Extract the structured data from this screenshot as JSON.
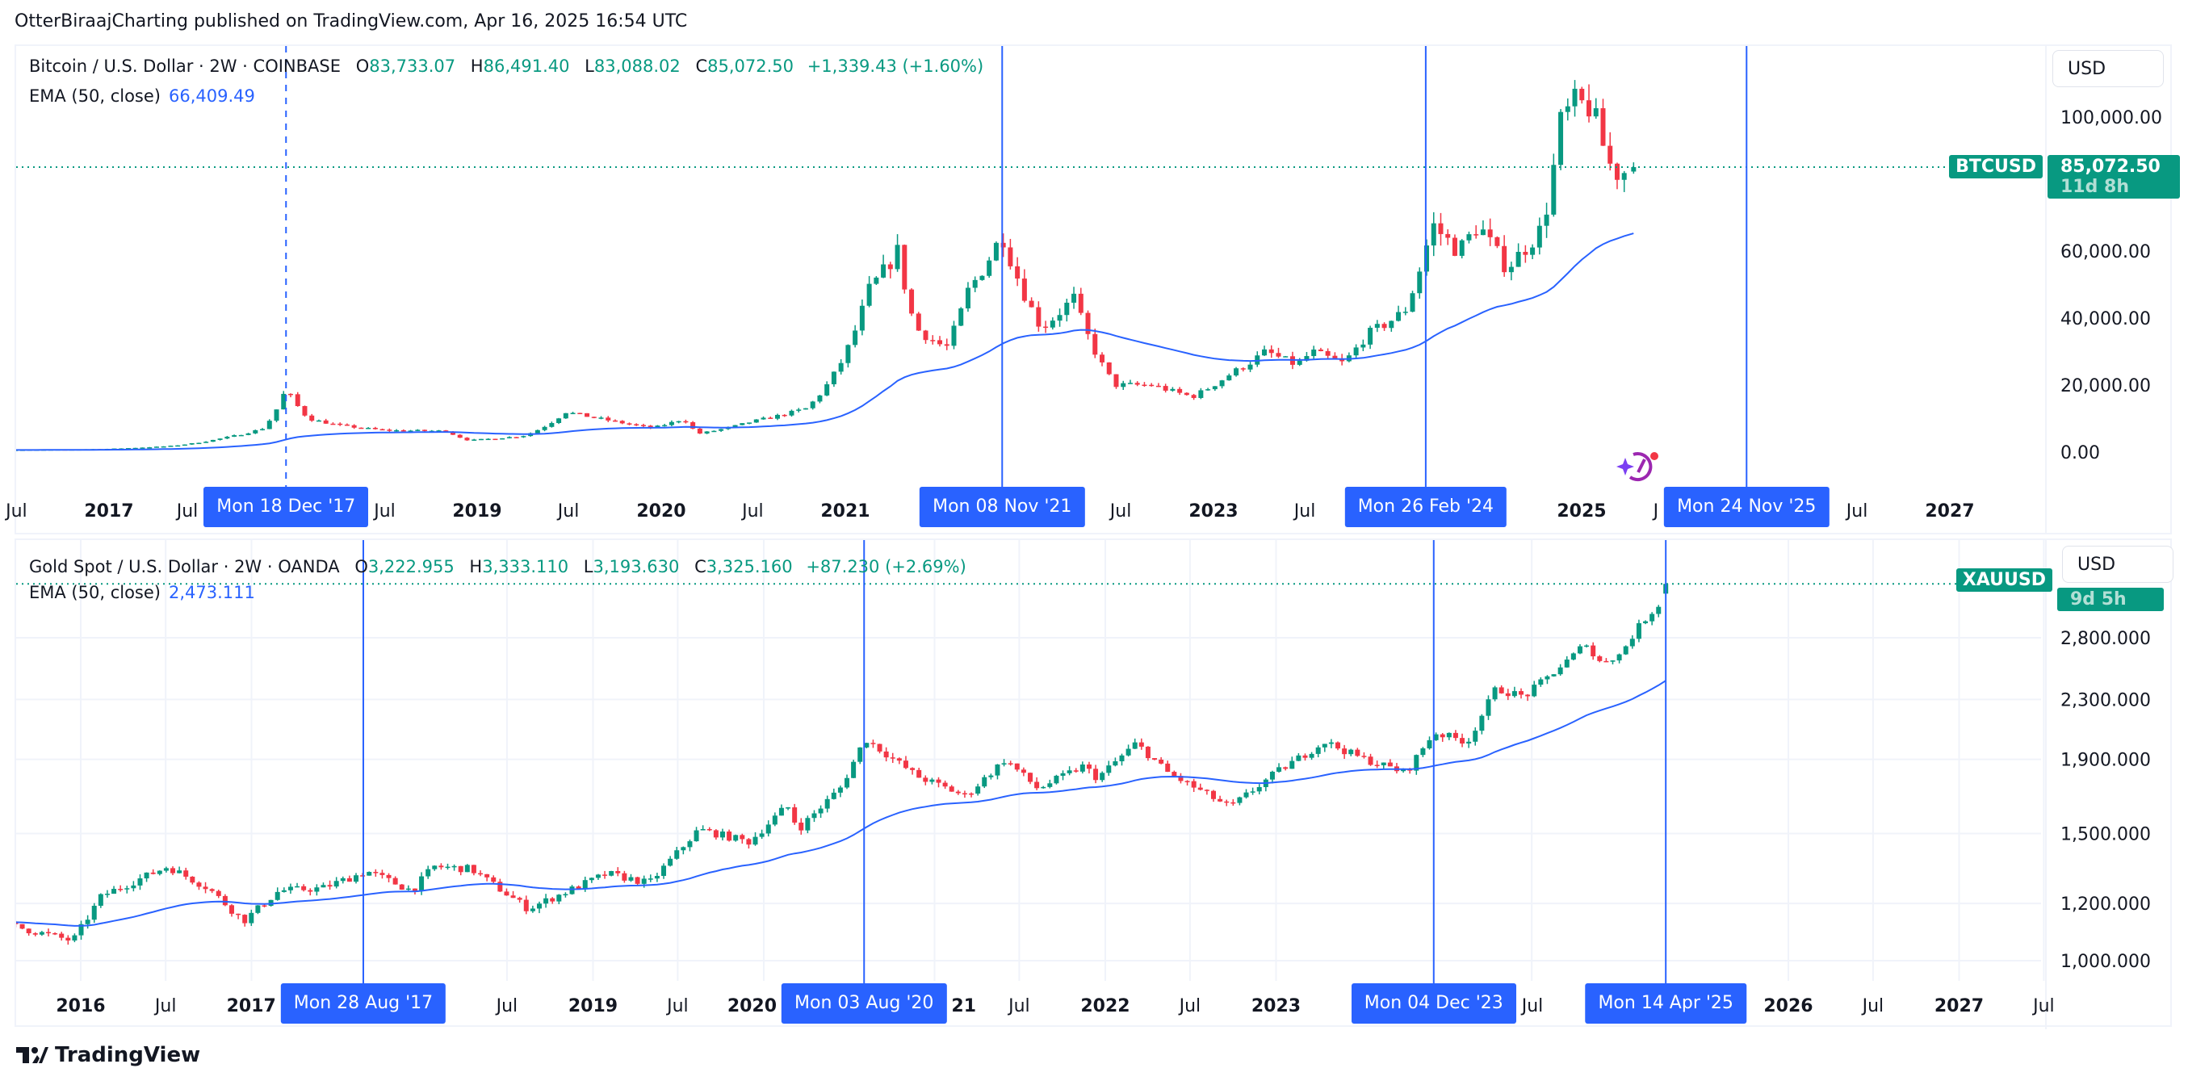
{
  "publisher": "OtterBiraajCharting published on TradingView.com, Apr 16, 2025 16:54 UTC",
  "branding": "TradingView",
  "colors": {
    "up": "#089981",
    "down": "#f23645",
    "ema": "#2962ff",
    "marker": "#2962ff",
    "grid": "#f0f3fa"
  },
  "chart_data": [
    {
      "type": "candlestick",
      "title": "Bitcoin / U.S. Dollar · 2W · COINBASE",
      "ohlc": {
        "o_label": "O",
        "o": "83,733.07",
        "h_label": "H",
        "h": "86,491.40",
        "l_label": "L",
        "l": "83,088.02",
        "c_label": "C",
        "c": "85,072.50",
        "change": "+1,339.43 (+1.60%)"
      },
      "last_ohlc": [
        83733.07,
        86491.4,
        83088.02,
        85072.5
      ],
      "ema_label": "EMA (50, close)",
      "ema_value": "66,409.49",
      "currency": "USD",
      "symbol_tag": "BTCUSD",
      "last_price": "85,072.50",
      "countdown": "11d 8h",
      "scale": "linear",
      "ylim": [
        -10000,
        125000
      ],
      "y_ticks": [
        {
          "v": 100000,
          "t": "100,000.00"
        },
        {
          "v": 60000,
          "t": "60,000.00"
        },
        {
          "v": 40000,
          "t": "40,000.00"
        },
        {
          "v": 20000,
          "t": "20,000.00"
        },
        {
          "v": 0,
          "t": "0.00"
        }
      ],
      "close_path": [
        [
          "2016-06-01",
          650
        ],
        [
          "2016-12-15",
          900
        ],
        [
          "2017-05-01",
          1800
        ],
        [
          "2017-08-15",
          4200
        ],
        [
          "2017-11-01",
          7000
        ],
        [
          "2017-12-18",
          19000
        ],
        [
          "2018-02-01",
          10000
        ],
        [
          "2018-04-01",
          8000
        ],
        [
          "2018-07-01",
          6500
        ],
        [
          "2018-11-01",
          6300
        ],
        [
          "2018-12-15",
          3500
        ],
        [
          "2019-04-01",
          4800
        ],
        [
          "2019-06-25",
          12000
        ],
        [
          "2019-09-01",
          10000
        ],
        [
          "2019-12-15",
          7200
        ],
        [
          "2020-02-15",
          10000
        ],
        [
          "2020-03-15",
          5500
        ],
        [
          "2020-07-01",
          9200
        ],
        [
          "2020-10-15",
          13000
        ],
        [
          "2020-12-31",
          29000
        ],
        [
          "2021-02-15",
          48000
        ],
        [
          "2021-04-15",
          60000
        ],
        [
          "2021-05-20",
          37000
        ],
        [
          "2021-07-20",
          31000
        ],
        [
          "2021-09-01",
          48000
        ],
        [
          "2021-11-08",
          65000
        ],
        [
          "2022-01-25",
          37000
        ],
        [
          "2022-03-30",
          46000
        ],
        [
          "2022-06-20",
          20000
        ],
        [
          "2022-09-01",
          20000
        ],
        [
          "2022-11-20",
          16500
        ],
        [
          "2023-01-31",
          23000
        ],
        [
          "2023-04-15",
          30000
        ],
        [
          "2023-06-15",
          26000
        ],
        [
          "2023-07-15",
          30000
        ],
        [
          "2023-09-15",
          26500
        ],
        [
          "2023-11-01",
          35000
        ],
        [
          "2024-01-15",
          42000
        ],
        [
          "2024-03-10",
          68000
        ],
        [
          "2024-05-01",
          60000
        ],
        [
          "2024-06-10",
          68000
        ],
        [
          "2024-08-05",
          55000
        ],
        [
          "2024-10-15",
          67000
        ],
        [
          "2024-11-20",
          98000
        ],
        [
          "2024-12-15",
          104000
        ],
        [
          "2025-01-20",
          103000
        ],
        [
          "2025-02-25",
          86000
        ],
        [
          "2025-03-15",
          83000
        ],
        [
          "2025-04-14",
          85072.5
        ]
      ],
      "x_ticks": [
        {
          "d": "2016-07-01",
          "t": "Jul"
        },
        {
          "d": "2017-01-01",
          "t": "2017",
          "major": true
        },
        {
          "d": "2017-07-01",
          "t": "Jul"
        },
        {
          "d": "2018-07-01",
          "t": "Jul"
        },
        {
          "d": "2019-01-01",
          "t": "2019",
          "major": true
        },
        {
          "d": "2019-07-01",
          "t": "Jul"
        },
        {
          "d": "2020-01-01",
          "t": "2020",
          "major": true
        },
        {
          "d": "2020-07-01",
          "t": "Jul"
        },
        {
          "d": "2021-01-01",
          "t": "2021",
          "major": true
        },
        {
          "d": "2022-07-01",
          "t": "Jul"
        },
        {
          "d": "2023-01-01",
          "t": "2023",
          "major": true
        },
        {
          "d": "2023-07-01",
          "t": "Jul"
        },
        {
          "d": "2025-01-01",
          "t": "2025",
          "major": true
        },
        {
          "d": "2025-07-01",
          "t": "J"
        },
        {
          "d": "2026-07-01",
          "t": "Jul"
        },
        {
          "d": "2027-01-01",
          "t": "2027",
          "major": true
        }
      ],
      "markers": [
        {
          "d": "2017-12-18",
          "t": "Mon 18 Dec '17",
          "style": "dashed"
        },
        {
          "d": "2021-11-08",
          "t": "Mon 08 Nov '21",
          "style": "solid"
        },
        {
          "d": "2024-02-26",
          "t": "Mon 26 Feb '24",
          "style": "solid"
        },
        {
          "d": "2025-11-24",
          "t": "Mon 24 Nov '25",
          "style": "solid"
        }
      ]
    },
    {
      "type": "candlestick",
      "title": "Gold Spot / U.S. Dollar · 2W · OANDA",
      "ohlc": {
        "o_label": "O",
        "o": "3,222.955",
        "h_label": "H",
        "h": "3,333.110",
        "l_label": "L",
        "l": "3,193.630",
        "c_label": "C",
        "c": "3,325.160",
        "change": "+87.230 (+2.69%)"
      },
      "last_ohlc": [
        3222.955,
        3333.11,
        3193.63,
        3325.16
      ],
      "ema_label": "EMA (50, close)",
      "ema_value": "2,473.111",
      "currency": "USD",
      "symbol_tag": "XAUUSD",
      "countdown": "9d 5h",
      "scale": "log",
      "y_ticks": [
        {
          "v": 2800,
          "t": "2,800.000"
        },
        {
          "v": 2300,
          "t": "2,300.000"
        },
        {
          "v": 1900,
          "t": "1,900.000"
        },
        {
          "v": 1500,
          "t": "1,500.000"
        },
        {
          "v": 1200,
          "t": "1,200.000"
        },
        {
          "v": 1000,
          "t": "1,000.000"
        }
      ],
      "close_path": [
        [
          "2015-08-01",
          1120
        ],
        [
          "2015-12-15",
          1065
        ],
        [
          "2016-02-15",
          1230
        ],
        [
          "2016-07-05",
          1350
        ],
        [
          "2016-10-01",
          1260
        ],
        [
          "2016-12-15",
          1135
        ],
        [
          "2017-03-01",
          1250
        ],
        [
          "2017-06-01",
          1260
        ],
        [
          "2017-09-05",
          1330
        ],
        [
          "2017-12-10",
          1250
        ],
        [
          "2018-01-25",
          1350
        ],
        [
          "2018-04-15",
          1340
        ],
        [
          "2018-08-15",
          1180
        ],
        [
          "2019-01-31",
          1320
        ],
        [
          "2019-05-01",
          1280
        ],
        [
          "2019-08-15",
          1520
        ],
        [
          "2019-12-01",
          1460
        ],
        [
          "2020-02-20",
          1640
        ],
        [
          "2020-03-15",
          1520
        ],
        [
          "2020-06-15",
          1740
        ],
        [
          "2020-08-05",
          2030
        ],
        [
          "2020-11-25",
          1800
        ],
        [
          "2021-03-08",
          1690
        ],
        [
          "2021-06-01",
          1900
        ],
        [
          "2021-08-10",
          1730
        ],
        [
          "2021-11-15",
          1860
        ],
        [
          "2021-12-15",
          1790
        ],
        [
          "2022-03-08",
          2000
        ],
        [
          "2022-05-15",
          1820
        ],
        [
          "2022-09-25",
          1630
        ],
        [
          "2022-12-31",
          1820
        ],
        [
          "2023-04-15",
          2010
        ],
        [
          "2023-06-30",
          1910
        ],
        [
          "2023-10-05",
          1820
        ],
        [
          "2023-12-04",
          2070
        ],
        [
          "2024-02-15",
          2010
        ],
        [
          "2024-04-15",
          2380
        ],
        [
          "2024-06-15",
          2320
        ],
        [
          "2024-09-30",
          2650
        ],
        [
          "2024-10-30",
          2780
        ],
        [
          "2024-11-15",
          2580
        ],
        [
          "2025-01-05",
          2650
        ],
        [
          "2025-02-20",
          2930
        ],
        [
          "2025-03-31",
          3120
        ],
        [
          "2025-04-14",
          3325.16
        ]
      ],
      "x_ticks": [
        {
          "d": "2016-01-01",
          "t": "2016",
          "major": true
        },
        {
          "d": "2016-07-01",
          "t": "Jul"
        },
        {
          "d": "2017-01-01",
          "t": "2017",
          "major": true
        },
        {
          "d": "2018-07-01",
          "t": "Jul"
        },
        {
          "d": "2019-01-01",
          "t": "2019",
          "major": true
        },
        {
          "d": "2019-07-01",
          "t": "Jul"
        },
        {
          "d": "2020-01-01",
          "t": "2020",
          "major": true
        },
        {
          "d": "2021-01-01",
          "t": "21",
          "major": true
        },
        {
          "d": "2021-07-01",
          "t": "Jul"
        },
        {
          "d": "2022-01-01",
          "t": "2022",
          "major": true
        },
        {
          "d": "2022-07-01",
          "t": "Jul"
        },
        {
          "d": "2023-01-01",
          "t": "2023",
          "major": true
        },
        {
          "d": "2024-07-01",
          "t": "Jul"
        },
        {
          "d": "2026-01-01",
          "t": "2026",
          "major": true
        },
        {
          "d": "2026-07-01",
          "t": "Jul"
        },
        {
          "d": "2027-01-01",
          "t": "2027",
          "major": true
        },
        {
          "d": "2027-07-01",
          "t": "Jul"
        }
      ],
      "markers": [
        {
          "d": "2017-08-28",
          "t": "Mon 28 Aug '17",
          "style": "solid"
        },
        {
          "d": "2020-08-03",
          "t": "Mon 03 Aug '20",
          "style": "solid"
        },
        {
          "d": "2023-12-04",
          "t": "Mon 04 Dec '23",
          "style": "solid"
        },
        {
          "d": "2025-04-14",
          "t": "Mon 14 Apr '25",
          "style": "solid"
        }
      ]
    }
  ]
}
